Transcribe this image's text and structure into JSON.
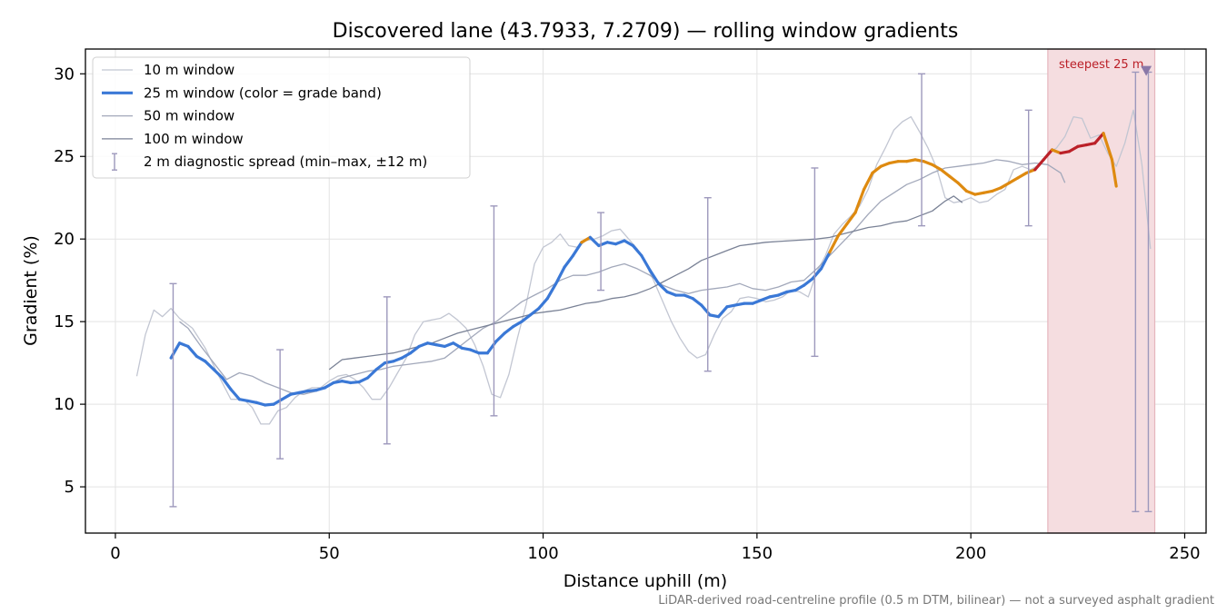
{
  "chart_data": {
    "type": "line",
    "title": "Discovered lane (43.7933, 7.2709) — rolling window gradients",
    "xlabel": "Distance uphill (m)",
    "ylabel": "Gradient (%)",
    "footnote": "LiDAR-derived road-centreline profile (0.5 m DTM, bilinear) — not a surveyed asphalt gradient",
    "xlim": [
      -7,
      255
    ],
    "ylim": [
      2.2,
      31.5
    ],
    "xticks": [
      0,
      50,
      100,
      150,
      200,
      250
    ],
    "yticks": [
      5,
      10,
      15,
      20,
      25,
      30
    ],
    "grid": true,
    "legend_position": "top-left",
    "legend": [
      {
        "label": "10 m window",
        "kind": "line",
        "color": "#c2c6d2",
        "width": 1.3
      },
      {
        "label": "25 m window (color = grade band)",
        "kind": "line",
        "color": "#3a78d6",
        "width": 3.2
      },
      {
        "label": "50 m window",
        "kind": "line",
        "color": "#a2a8ba",
        "width": 1.3
      },
      {
        "label": "100 m window",
        "kind": "line",
        "color": "#7a8296",
        "width": 1.3
      },
      {
        "label": "2 m diagnostic spread (min–max, ±12 m)",
        "kind": "errorbar",
        "color": "#9d98bc",
        "width": 1.3
      }
    ],
    "grade_band_colors": {
      "blue": "#3a78d6",
      "orange": "#de8a10",
      "red": "#bb2028"
    },
    "steepest": {
      "label": "steepest 25 m",
      "x_start": 218,
      "x_end": 243,
      "marker_x": 241,
      "marker_y": 30.2,
      "shade_color": "#f5dde0",
      "edge_color": "#e5b6bd",
      "label_color": "#bb2028",
      "marker_color": "#8a78a8"
    },
    "series": [
      {
        "name": "10 m window",
        "color": "#c2c6d2",
        "width": 1.3,
        "x": [
          5,
          7,
          9,
          11,
          13,
          15,
          18,
          21,
          24,
          27,
          30,
          32,
          34,
          36,
          38,
          40,
          42,
          44,
          46,
          48,
          50,
          52,
          54,
          56,
          58,
          60,
          62,
          64,
          66,
          68,
          70,
          72,
          74,
          76,
          78,
          80,
          82,
          84,
          86,
          88,
          90,
          92,
          94,
          96,
          98,
          100,
          102,
          104,
          106,
          108,
          110,
          112,
          114,
          116,
          118,
          120,
          122,
          124,
          126,
          128,
          130,
          132,
          134,
          136,
          138,
          140,
          142,
          144,
          146,
          148,
          150,
          152,
          154,
          156,
          158,
          160,
          162,
          164,
          166,
          168,
          170,
          172,
          174,
          176,
          178,
          180,
          182,
          184,
          186,
          188,
          190,
          192,
          194,
          196,
          198,
          200,
          202,
          204,
          206,
          208,
          210,
          212,
          214,
          216,
          218,
          220,
          222,
          224,
          226,
          228,
          230,
          232,
          234,
          236,
          238,
          240,
          242
        ],
        "y": [
          11.7,
          14.2,
          15.7,
          15.3,
          15.8,
          15.2,
          14.6,
          13.4,
          11.8,
          10.3,
          10.3,
          9.8,
          8.8,
          8.8,
          9.6,
          9.8,
          10.4,
          10.8,
          11.0,
          11.0,
          11.4,
          11.7,
          11.8,
          11.5,
          11.0,
          10.3,
          10.3,
          11.0,
          11.9,
          12.8,
          14.2,
          15.0,
          15.1,
          15.2,
          15.5,
          15.1,
          14.6,
          13.6,
          12.3,
          10.6,
          10.4,
          11.8,
          14.0,
          16.0,
          18.5,
          19.5,
          19.8,
          20.3,
          19.6,
          19.5,
          19.9,
          20.0,
          20.2,
          20.5,
          20.6,
          20.0,
          19.4,
          18.5,
          17.4,
          16.2,
          15.0,
          14.0,
          13.2,
          12.8,
          13.0,
          14.2,
          15.2,
          15.6,
          16.4,
          16.5,
          16.4,
          16.2,
          16.3,
          16.5,
          16.9,
          16.8,
          16.5,
          18.0,
          19.0,
          20.3,
          20.9,
          21.4,
          22.0,
          23.0,
          24.5,
          25.5,
          26.6,
          27.1,
          27.4,
          26.5,
          25.5,
          24.3,
          22.5,
          22.2,
          22.3,
          22.5,
          22.2,
          22.3,
          22.7,
          23.0,
          24.2,
          24.4,
          24.2,
          24.5,
          25.2,
          25.5,
          26.2,
          27.4,
          27.3,
          26.1,
          26.3,
          25.2,
          24.4,
          25.8,
          27.8,
          24.5,
          19.4
        ]
      },
      {
        "name": "25 m window (color = grade band)",
        "color": "#3a78d6",
        "width": 3.2,
        "x": [
          13,
          15,
          17,
          19,
          21,
          23,
          25,
          27,
          29,
          31,
          33,
          35,
          37,
          39,
          41,
          43,
          45,
          47,
          49,
          51,
          53,
          55,
          57,
          59,
          61,
          63,
          65,
          67,
          69,
          71,
          73,
          75,
          77,
          79,
          81,
          83,
          85,
          87,
          89,
          91,
          93,
          95,
          97,
          99,
          101,
          103,
          105,
          107,
          109,
          111,
          113,
          115,
          117,
          119,
          121,
          123,
          125,
          127,
          129,
          131,
          133,
          135,
          137,
          139,
          141,
          143,
          145,
          147,
          149,
          151,
          153,
          155,
          157,
          159,
          161,
          163,
          165,
          167,
          169,
          171,
          173,
          175,
          177,
          179,
          181,
          183,
          185,
          187,
          189,
          191,
          193,
          195,
          197,
          199,
          201,
          203,
          205,
          207,
          209,
          211,
          213,
          215,
          217,
          219,
          221,
          223,
          225,
          227,
          229,
          231,
          233,
          234
        ],
        "y": [
          12.8,
          13.7,
          13.5,
          12.9,
          12.6,
          12.1,
          11.6,
          10.9,
          10.3,
          10.2,
          10.1,
          9.95,
          10.0,
          10.3,
          10.6,
          10.7,
          10.8,
          10.85,
          11.0,
          11.3,
          11.4,
          11.3,
          11.35,
          11.6,
          12.1,
          12.5,
          12.6,
          12.8,
          13.1,
          13.5,
          13.7,
          13.6,
          13.5,
          13.7,
          13.4,
          13.3,
          13.1,
          13.1,
          13.8,
          14.3,
          14.7,
          15.0,
          15.4,
          15.8,
          16.4,
          17.3,
          18.3,
          19.0,
          19.8,
          20.1,
          19.6,
          19.8,
          19.7,
          19.9,
          19.6,
          19.0,
          18.1,
          17.3,
          16.8,
          16.6,
          16.6,
          16.4,
          16.0,
          15.4,
          15.3,
          15.9,
          16.0,
          16.1,
          16.1,
          16.3,
          16.5,
          16.6,
          16.8,
          16.9,
          17.2,
          17.6,
          18.2,
          19.2,
          20.2,
          20.9,
          21.6,
          23.0,
          24.0,
          24.4,
          24.6,
          24.7,
          24.7,
          24.8,
          24.7,
          24.5,
          24.2,
          23.8,
          23.4,
          22.9,
          22.7,
          22.8,
          22.9,
          23.1,
          23.4,
          23.7,
          24.0,
          24.2,
          24.8,
          25.4,
          25.2,
          25.3,
          25.6,
          25.7,
          25.8,
          26.4,
          24.8,
          23.2
        ],
        "band": [
          "blue",
          "blue",
          "blue",
          "blue",
          "blue",
          "blue",
          "blue",
          "blue",
          "blue",
          "blue",
          "blue",
          "blue",
          "blue",
          "blue",
          "blue",
          "blue",
          "blue",
          "blue",
          "blue",
          "blue",
          "blue",
          "blue",
          "blue",
          "blue",
          "blue",
          "blue",
          "blue",
          "blue",
          "blue",
          "blue",
          "blue",
          "blue",
          "blue",
          "blue",
          "blue",
          "blue",
          "blue",
          "blue",
          "blue",
          "blue",
          "blue",
          "blue",
          "blue",
          "blue",
          "blue",
          "blue",
          "blue",
          "blue",
          "blue",
          "orange",
          "blue",
          "blue",
          "blue",
          "blue",
          "blue",
          "blue",
          "blue",
          "blue",
          "blue",
          "blue",
          "blue",
          "blue",
          "blue",
          "blue",
          "blue",
          "blue",
          "blue",
          "blue",
          "blue",
          "blue",
          "blue",
          "blue",
          "blue",
          "blue",
          "blue",
          "blue",
          "blue",
          "blue",
          "orange",
          "orange",
          "orange",
          "orange",
          "orange",
          "orange",
          "orange",
          "orange",
          "orange",
          "orange",
          "orange",
          "orange",
          "orange",
          "orange",
          "orange",
          "orange",
          "orange",
          "orange",
          "orange",
          "orange",
          "orange",
          "orange",
          "orange",
          "orange",
          "red",
          "red",
          "orange",
          "red",
          "red",
          "red",
          "red",
          "red",
          "orange",
          "orange"
        ]
      },
      {
        "name": "50 m window",
        "color": "#a2a8ba",
        "width": 1.3,
        "x": [
          15,
          17,
          20,
          23,
          26,
          29,
          32,
          35,
          38,
          41,
          44,
          47,
          50,
          53,
          56,
          59,
          62,
          65,
          68,
          71,
          74,
          77,
          80,
          83,
          86,
          89,
          92,
          95,
          98,
          101,
          104,
          107,
          110,
          113,
          116,
          119,
          122,
          125,
          128,
          131,
          134,
          137,
          140,
          143,
          146,
          149,
          152,
          155,
          158,
          161,
          164,
          167,
          170,
          173,
          176,
          179,
          182,
          185,
          188,
          191,
          194,
          197,
          200,
          203,
          206,
          209,
          212,
          215,
          218,
          221,
          222
        ],
        "y": [
          15.0,
          14.6,
          13.5,
          12.5,
          11.5,
          11.9,
          11.7,
          11.3,
          11.0,
          10.7,
          10.6,
          10.8,
          11.2,
          11.6,
          11.8,
          12.0,
          12.1,
          12.3,
          12.4,
          12.5,
          12.6,
          12.8,
          13.4,
          14.0,
          14.6,
          15.0,
          15.6,
          16.2,
          16.6,
          17.0,
          17.5,
          17.8,
          17.8,
          18.0,
          18.3,
          18.5,
          18.2,
          17.8,
          17.2,
          16.9,
          16.7,
          16.9,
          17.0,
          17.1,
          17.3,
          17.0,
          16.9,
          17.1,
          17.4,
          17.5,
          18.2,
          19.0,
          19.8,
          20.6,
          21.5,
          22.3,
          22.8,
          23.3,
          23.6,
          24.0,
          24.3,
          24.4,
          24.5,
          24.6,
          24.8,
          24.7,
          24.5,
          24.6,
          24.5,
          24.0,
          23.4
        ]
      },
      {
        "name": "100 m window",
        "color": "#7a8296",
        "width": 1.3,
        "x": [
          50,
          53,
          56,
          59,
          62,
          65,
          68,
          71,
          74,
          77,
          80,
          83,
          86,
          89,
          92,
          95,
          98,
          101,
          104,
          107,
          110,
          113,
          116,
          119,
          122,
          125,
          128,
          131,
          134,
          137,
          140,
          143,
          146,
          149,
          152,
          155,
          158,
          161,
          164,
          167,
          170,
          173,
          176,
          179,
          182,
          185,
          188,
          191,
          194,
          196,
          198
        ],
        "y": [
          12.1,
          12.7,
          12.8,
          12.9,
          13.0,
          13.1,
          13.3,
          13.5,
          13.7,
          14.0,
          14.3,
          14.5,
          14.7,
          14.9,
          15.1,
          15.3,
          15.5,
          15.6,
          15.7,
          15.9,
          16.1,
          16.2,
          16.4,
          16.5,
          16.7,
          17.0,
          17.4,
          17.8,
          18.2,
          18.7,
          19.0,
          19.3,
          19.6,
          19.7,
          19.8,
          19.85,
          19.9,
          19.95,
          20.0,
          20.1,
          20.3,
          20.5,
          20.7,
          20.8,
          21.0,
          21.1,
          21.4,
          21.7,
          22.3,
          22.6,
          22.2
        ]
      }
    ],
    "errorbars": [
      {
        "x": 13.5,
        "ymin": 3.8,
        "ymax": 17.3
      },
      {
        "x": 38.5,
        "ymin": 6.7,
        "ymax": 13.3
      },
      {
        "x": 63.5,
        "ymin": 7.6,
        "ymax": 16.5
      },
      {
        "x": 88.5,
        "ymin": 9.3,
        "ymax": 22.0
      },
      {
        "x": 113.5,
        "ymin": 16.9,
        "ymax": 21.6
      },
      {
        "x": 138.5,
        "ymin": 12.0,
        "ymax": 22.5
      },
      {
        "x": 163.5,
        "ymin": 12.9,
        "ymax": 24.3
      },
      {
        "x": 188.5,
        "ymin": 20.8,
        "ymax": 30.0
      },
      {
        "x": 213.5,
        "ymin": 20.8,
        "ymax": 27.8
      },
      {
        "x": 238.5,
        "ymin": 3.5,
        "ymax": 30.1
      },
      {
        "x": 241.5,
        "ymin": 3.5,
        "ymax": 30.1
      }
    ]
  }
}
